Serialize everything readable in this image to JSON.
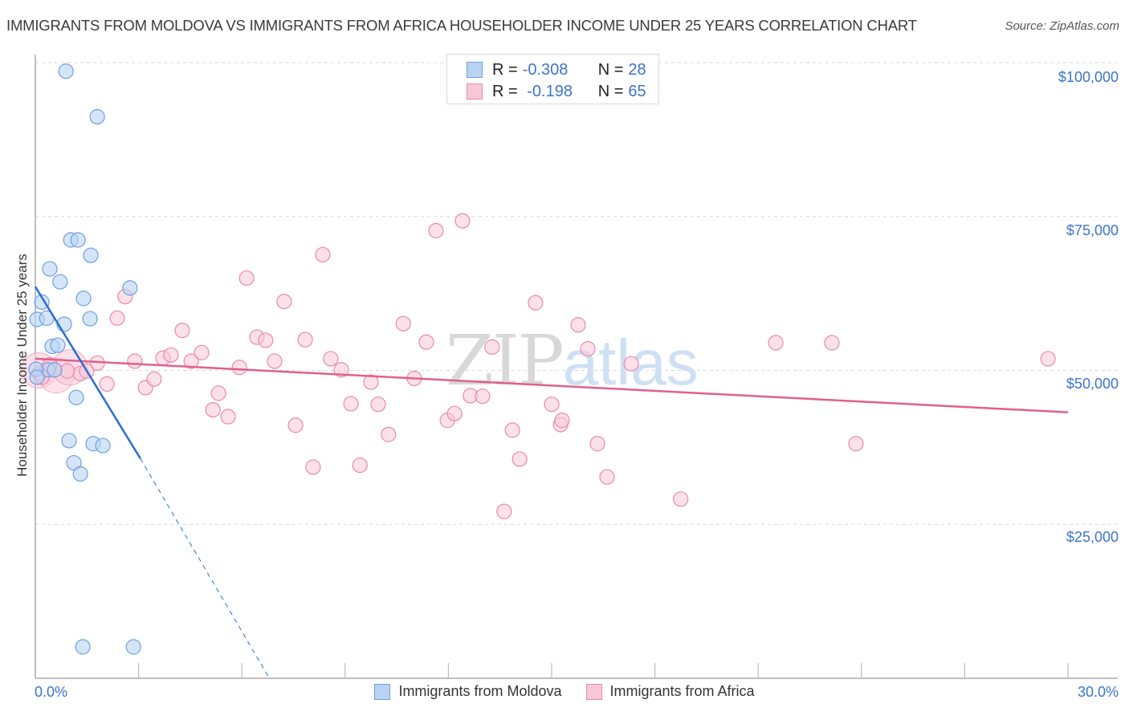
{
  "header": {
    "title": "IMMIGRANTS FROM MOLDOVA VS IMMIGRANTS FROM AFRICA HOUSEHOLDER INCOME UNDER 25 YEARS CORRELATION CHART",
    "source": "Source: ZipAtlas.com"
  },
  "watermark": {
    "zip": "ZIP",
    "atlas": "atlas"
  },
  "stats_legend": {
    "rows": [
      {
        "r_label": "R = ",
        "r_value": "-0.308",
        "n_label": "N = ",
        "n_value": "28"
      },
      {
        "r_label": "R = ",
        "r_value": " -0.198",
        "n_label": "N = ",
        "n_value": "65"
      }
    ]
  },
  "colors": {
    "moldova_fill": "#b9d3f3",
    "moldova_stroke": "#6f9fe0",
    "moldova_line": "#2a6fd1",
    "africa_fill": "#f9c8d8",
    "africa_stroke": "#e88aa8",
    "africa_line": "#e0608c",
    "axis_label": "#3b74cc",
    "grid": "#d8d8d8"
  },
  "chart_data": {
    "type": "scatter",
    "title": "Immigrants from Moldova vs Immigrants from Africa Householder Income Under 25 years Correlation Chart",
    "xlabel": "",
    "ylabel": "Householder Income Under 25 years",
    "xlim": [
      0,
      30
    ],
    "ylim": [
      0,
      100000
    ],
    "x_tick_labels": [
      "0.0%",
      "30.0%"
    ],
    "y_ticks": [
      25000,
      50000,
      75000,
      100000
    ],
    "y_tick_labels": [
      "$25,000",
      "$50,000",
      "$75,000",
      "$100,000"
    ],
    "grid": "horizontal dashed",
    "legend_position": "bottom",
    "series": [
      {
        "name": "Immigrants from Moldova",
        "R": -0.308,
        "N": 28,
        "trend": {
          "x0": 0.0,
          "y0": 63600,
          "x1": 3.05,
          "y1": 35700,
          "dashed_to_x": 6.8,
          "dashed_to_y": 0
        },
        "points": [
          [
            0.89,
            98600
          ],
          [
            1.8,
            91200
          ],
          [
            1.03,
            71200
          ],
          [
            1.24,
            71200
          ],
          [
            1.61,
            68700
          ],
          [
            0.42,
            66500
          ],
          [
            0.72,
            64400
          ],
          [
            2.75,
            63400
          ],
          [
            1.4,
            61700
          ],
          [
            0.19,
            61100
          ],
          [
            0.05,
            58300
          ],
          [
            0.33,
            58500
          ],
          [
            1.59,
            58400
          ],
          [
            0.84,
            57500
          ],
          [
            0.49,
            53900
          ],
          [
            0.65,
            54100
          ],
          [
            0.37,
            50100
          ],
          [
            0.56,
            50100
          ],
          [
            1.19,
            45600
          ],
          [
            0.98,
            38600
          ],
          [
            1.68,
            38100
          ],
          [
            1.96,
            37800
          ],
          [
            1.12,
            35000
          ],
          [
            1.31,
            33200
          ],
          [
            1.38,
            5100
          ],
          [
            2.85,
            5100
          ],
          [
            0.02,
            50200
          ],
          [
            0.05,
            48900
          ]
        ]
      },
      {
        "name": "Immigrants from Africa",
        "R": -0.198,
        "N": 65,
        "trend": {
          "x0": 0.0,
          "y0": 51900,
          "x1": 30.0,
          "y1": 43200
        },
        "points": [
          [
            0.12,
            49500
          ],
          [
            0.42,
            50900
          ],
          [
            1.31,
            49500
          ],
          [
            1.8,
            51200
          ],
          [
            1.49,
            49900
          ],
          [
            2.08,
            47800
          ],
          [
            2.38,
            58500
          ],
          [
            2.61,
            62000
          ],
          [
            2.89,
            51500
          ],
          [
            3.2,
            47200
          ],
          [
            3.45,
            48600
          ],
          [
            3.71,
            52000
          ],
          [
            3.94,
            52500
          ],
          [
            4.27,
            56500
          ],
          [
            4.53,
            51500
          ],
          [
            4.83,
            52900
          ],
          [
            5.16,
            43600
          ],
          [
            5.32,
            46300
          ],
          [
            5.6,
            42500
          ],
          [
            5.93,
            50500
          ],
          [
            6.14,
            65000
          ],
          [
            6.44,
            55400
          ],
          [
            6.69,
            54900
          ],
          [
            6.95,
            51500
          ],
          [
            7.23,
            61200
          ],
          [
            7.56,
            41100
          ],
          [
            7.84,
            55000
          ],
          [
            8.07,
            34300
          ],
          [
            8.35,
            68800
          ],
          [
            8.58,
            51900
          ],
          [
            8.89,
            50100
          ],
          [
            9.17,
            44600
          ],
          [
            9.43,
            34600
          ],
          [
            9.75,
            48100
          ],
          [
            9.96,
            44500
          ],
          [
            10.26,
            39600
          ],
          [
            10.69,
            57600
          ],
          [
            11.01,
            48700
          ],
          [
            11.36,
            54600
          ],
          [
            11.64,
            72700
          ],
          [
            11.97,
            41900
          ],
          [
            12.18,
            43000
          ],
          [
            12.41,
            74300
          ],
          [
            12.64,
            45900
          ],
          [
            12.99,
            45800
          ],
          [
            13.27,
            53800
          ],
          [
            13.62,
            27100
          ],
          [
            13.86,
            40300
          ],
          [
            14.07,
            35600
          ],
          [
            14.53,
            61000
          ],
          [
            15.0,
            44500
          ],
          [
            15.26,
            41200
          ],
          [
            15.3,
            41900
          ],
          [
            15.77,
            57400
          ],
          [
            16.05,
            53500
          ],
          [
            16.33,
            38100
          ],
          [
            16.61,
            32700
          ],
          [
            17.31,
            51100
          ],
          [
            18.75,
            29100
          ],
          [
            21.51,
            54500
          ],
          [
            23.14,
            54500
          ],
          [
            23.84,
            38100
          ],
          [
            29.42,
            51900
          ],
          [
            0.19,
            48900
          ],
          [
            0.93,
            49900
          ]
        ],
        "large_bubbles_near_origin": [
          [
            0.1,
            50000
          ],
          [
            0.6,
            49200
          ],
          [
            1.0,
            50500
          ]
        ]
      }
    ]
  },
  "axes": {
    "y_ticks": [
      {
        "label": "$100,000",
        "value": 100000
      },
      {
        "label": "$75,000",
        "value": 75000
      },
      {
        "label": "$50,000",
        "value": 50000
      },
      {
        "label": "$25,000",
        "value": 25000
      }
    ],
    "x_min_label": "0.0%",
    "x_max_label": "30.0%",
    "y_axis_label": "Householder Income Under 25 years"
  },
  "bottom_legend": {
    "items": [
      {
        "label": "Immigrants from Moldova"
      },
      {
        "label": "Immigrants from Africa"
      }
    ]
  }
}
